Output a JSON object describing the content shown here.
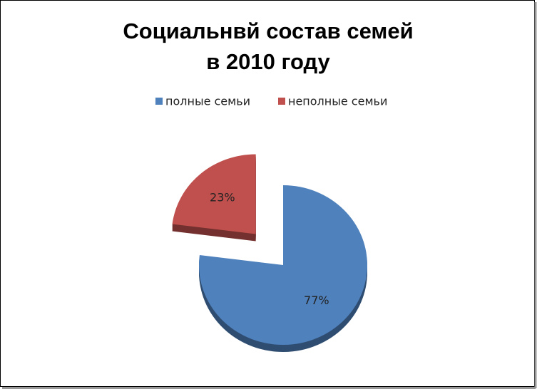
{
  "chart_data": {
    "type": "pie",
    "title": [
      "Социальнвй состав семей",
      "в 2010 году"
    ],
    "categories": [
      "полные семьи",
      "неполные семьи"
    ],
    "values": [
      77,
      23
    ],
    "value_labels": [
      "77%",
      "23%"
    ],
    "colors": [
      "#4f81bd",
      "#c0504d"
    ],
    "explode": [
      false,
      true
    ],
    "legend": "top"
  }
}
